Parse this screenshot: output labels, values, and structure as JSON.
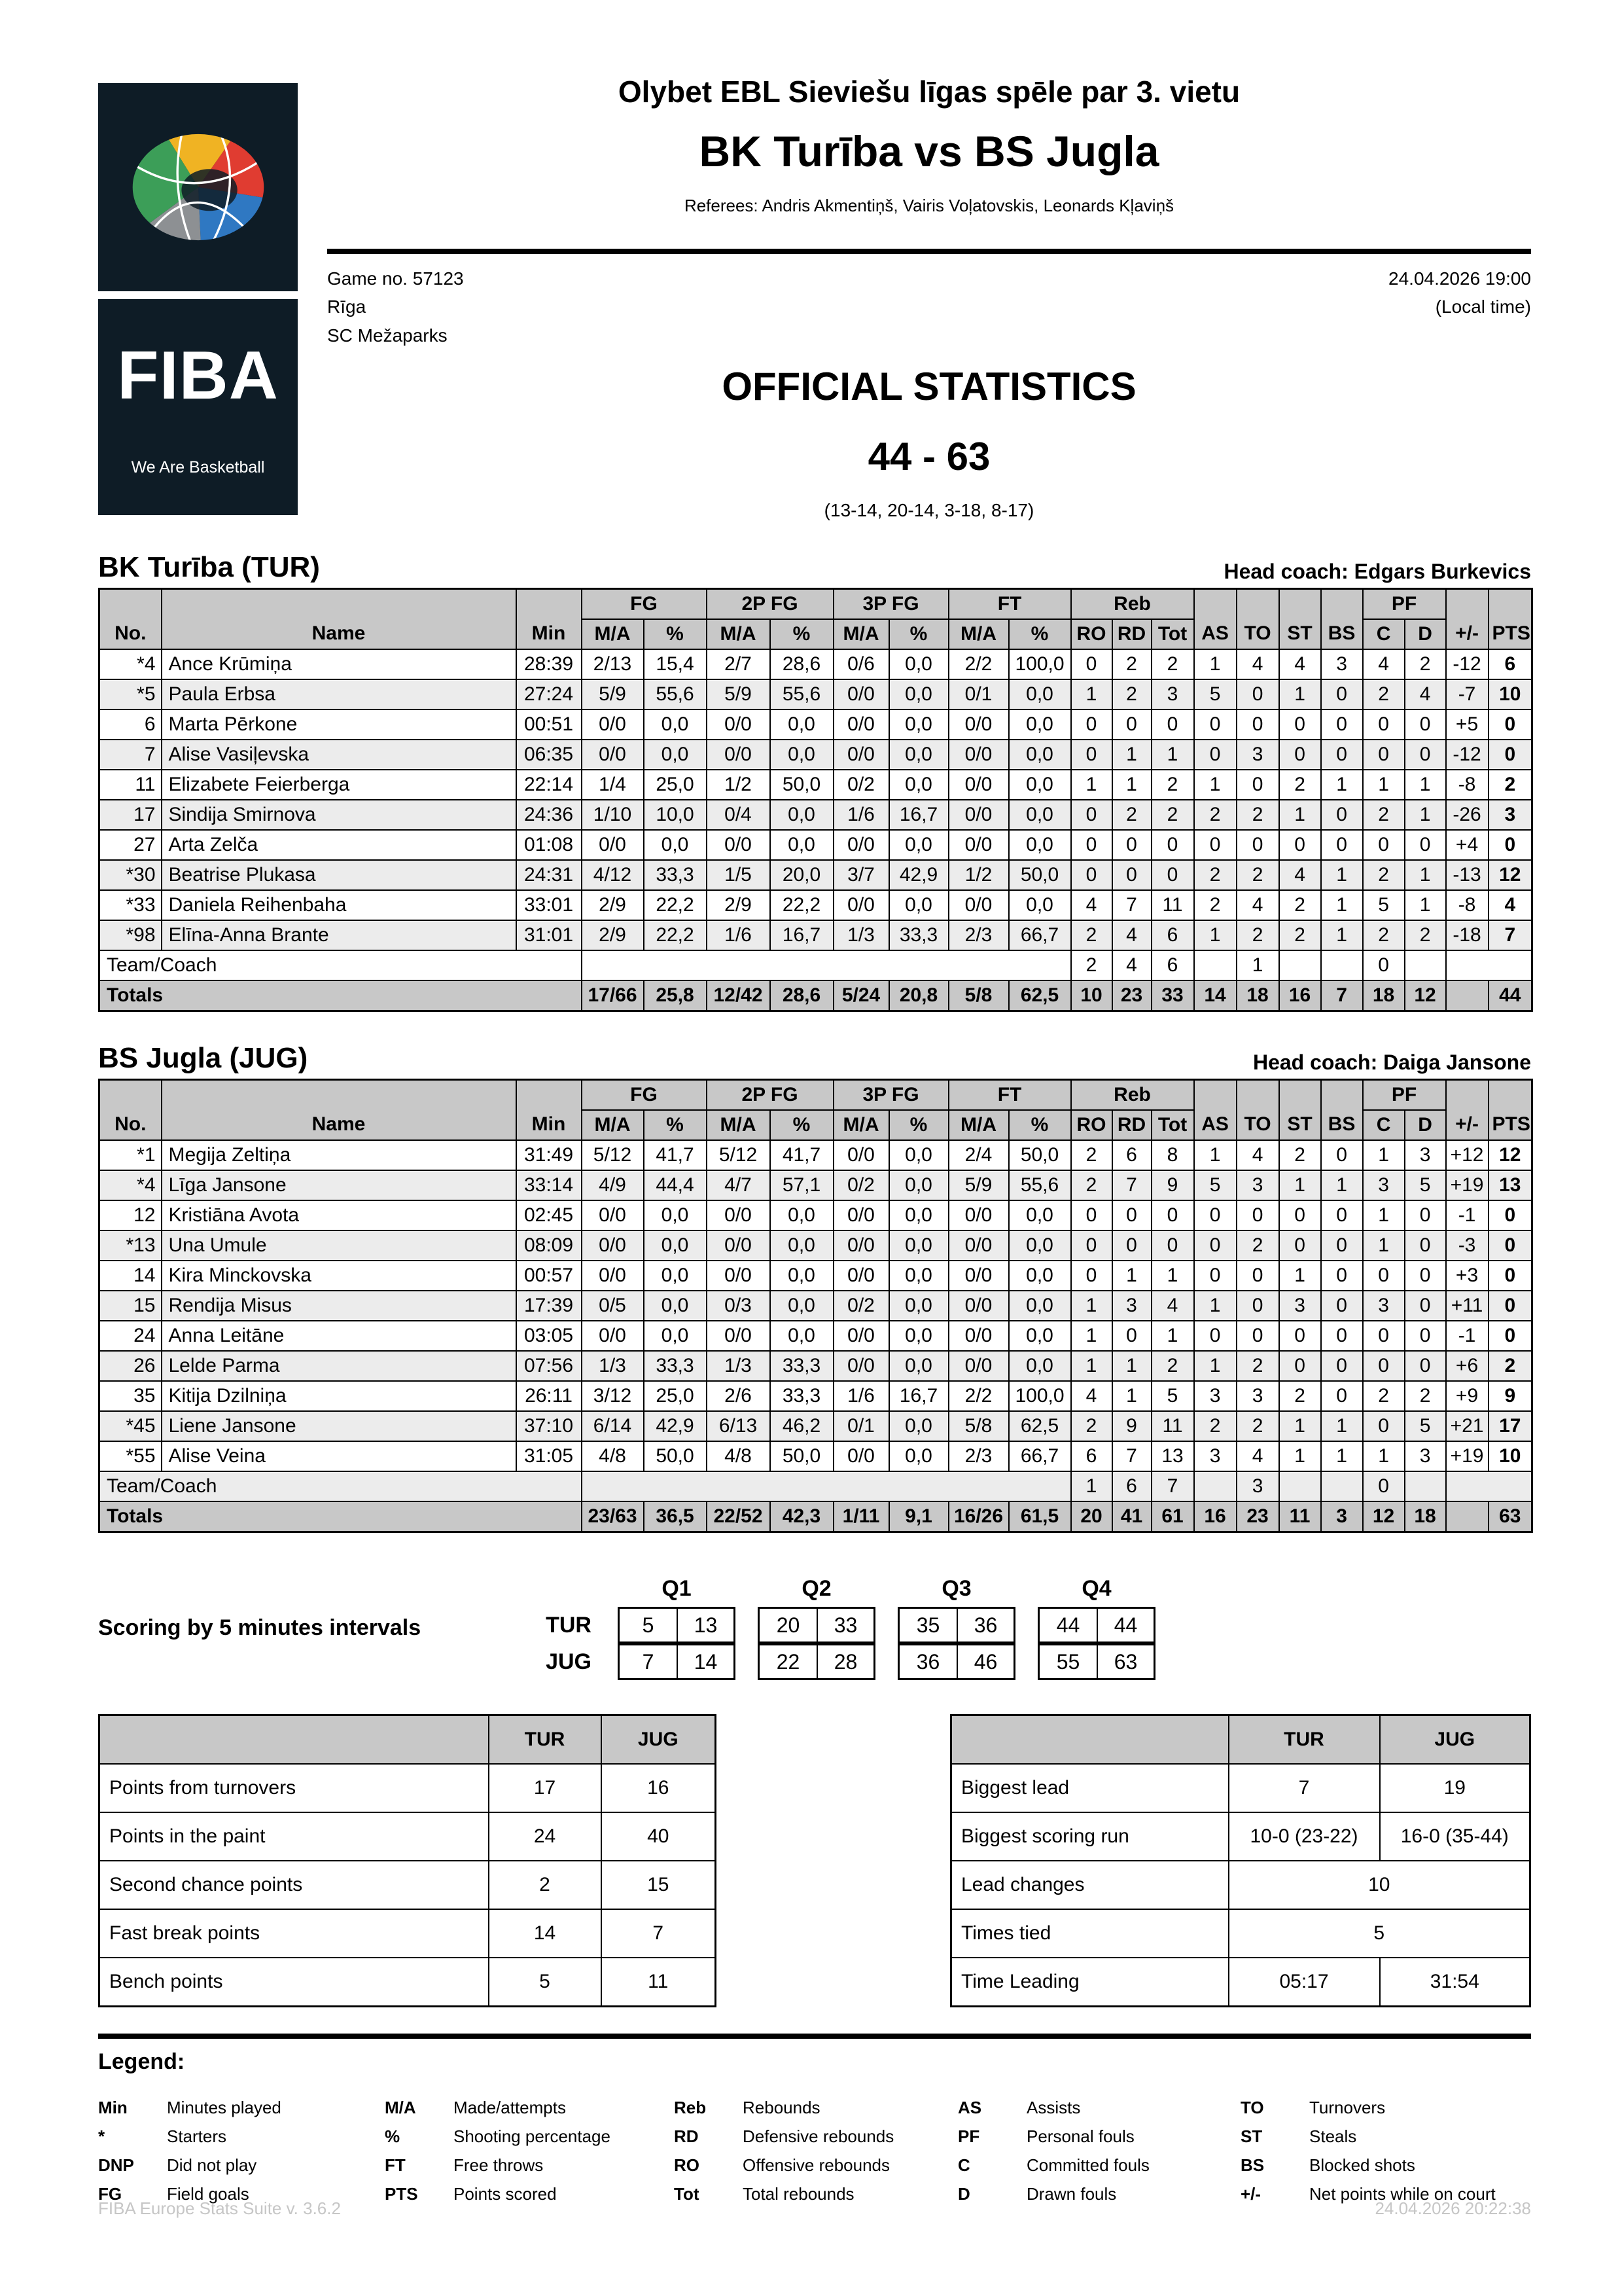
{
  "header": {
    "competition": "Olybet EBL Sieviešu līgas spēle par 3. vietu",
    "matchup": "BK Turība vs BS Jugla",
    "referees": "Referees: Andris Akmentiņš, Vairis Voļatovskis, Leonards Kļaviņš",
    "game_no": "Game no. 57123",
    "city": "Rīga",
    "venue": "SC Mežaparks",
    "datetime": "24.04.2026 19:00",
    "local_time": "(Local time)",
    "title": "OFFICIAL STATISTICS",
    "score": "44 - 63",
    "quarters": "(13-14, 20-14, 3-18, 8-17)"
  },
  "logo": {
    "fiba": "FIBA",
    "tagline": "We Are Basketball"
  },
  "columns": {
    "no": "No.",
    "name": "Name",
    "min": "Min",
    "ma": "M/A",
    "pct": "%",
    "fg": "FG",
    "fg2": "2P FG",
    "fg3": "3P FG",
    "ft": "FT",
    "reb": "Reb",
    "ro": "RO",
    "rd": "RD",
    "tot": "Tot",
    "as": "AS",
    "to": "TO",
    "st": "ST",
    "bs": "BS",
    "pf": "PF",
    "c": "C",
    "d": "D",
    "pm": "+/-",
    "pts": "PTS",
    "team_coach": "Team/Coach",
    "totals": "Totals"
  },
  "teams": [
    {
      "title": "BK Turība (TUR)",
      "coach": "Head coach: Edgars Burkevics",
      "players": [
        [
          "*4",
          "Ance Krūmiņa",
          "28:39",
          "2/13",
          "15,4",
          "2/7",
          "28,6",
          "0/6",
          "0,0",
          "2/2",
          "100,0",
          "0",
          "2",
          "2",
          "1",
          "4",
          "4",
          "3",
          "4",
          "2",
          "-12",
          "6"
        ],
        [
          "*5",
          "Paula Erbsa",
          "27:24",
          "5/9",
          "55,6",
          "5/9",
          "55,6",
          "0/0",
          "0,0",
          "0/1",
          "0,0",
          "1",
          "2",
          "3",
          "5",
          "0",
          "1",
          "0",
          "2",
          "4",
          "-7",
          "10"
        ],
        [
          "6",
          "Marta Pērkone",
          "00:51",
          "0/0",
          "0,0",
          "0/0",
          "0,0",
          "0/0",
          "0,0",
          "0/0",
          "0,0",
          "0",
          "0",
          "0",
          "0",
          "0",
          "0",
          "0",
          "0",
          "0",
          "+5",
          "0"
        ],
        [
          "7",
          "Alise Vasiļevska",
          "06:35",
          "0/0",
          "0,0",
          "0/0",
          "0,0",
          "0/0",
          "0,0",
          "0/0",
          "0,0",
          "0",
          "1",
          "1",
          "0",
          "3",
          "0",
          "0",
          "0",
          "0",
          "-12",
          "0"
        ],
        [
          "11",
          "Elizabete Feierberga",
          "22:14",
          "1/4",
          "25,0",
          "1/2",
          "50,0",
          "0/2",
          "0,0",
          "0/0",
          "0,0",
          "1",
          "1",
          "2",
          "1",
          "0",
          "2",
          "1",
          "1",
          "1",
          "-8",
          "2"
        ],
        [
          "17",
          "Sindija Smirnova",
          "24:36",
          "1/10",
          "10,0",
          "0/4",
          "0,0",
          "1/6",
          "16,7",
          "0/0",
          "0,0",
          "0",
          "2",
          "2",
          "2",
          "2",
          "1",
          "0",
          "2",
          "1",
          "-26",
          "3"
        ],
        [
          "27",
          "Arta Zelča",
          "01:08",
          "0/0",
          "0,0",
          "0/0",
          "0,0",
          "0/0",
          "0,0",
          "0/0",
          "0,0",
          "0",
          "0",
          "0",
          "0",
          "0",
          "0",
          "0",
          "0",
          "0",
          "+4",
          "0"
        ],
        [
          "*30",
          "Beatrise Plukasa",
          "24:31",
          "4/12",
          "33,3",
          "1/5",
          "20,0",
          "3/7",
          "42,9",
          "1/2",
          "50,0",
          "0",
          "0",
          "0",
          "2",
          "2",
          "4",
          "1",
          "2",
          "1",
          "-13",
          "12"
        ],
        [
          "*33",
          "Daniela Reihenbaha",
          "33:01",
          "2/9",
          "22,2",
          "2/9",
          "22,2",
          "0/0",
          "0,0",
          "0/0",
          "0,0",
          "4",
          "7",
          "11",
          "2",
          "4",
          "2",
          "1",
          "5",
          "1",
          "-8",
          "4"
        ],
        [
          "*98",
          "Elīna-Anna Brante",
          "31:01",
          "2/9",
          "22,2",
          "1/6",
          "16,7",
          "1/3",
          "33,3",
          "2/3",
          "66,7",
          "2",
          "4",
          "6",
          "1",
          "2",
          "2",
          "1",
          "2",
          "2",
          "-18",
          "7"
        ]
      ],
      "team_coach": {
        "ro": "2",
        "rd": "4",
        "tot": "6",
        "to": "1",
        "c": "0"
      },
      "totals": [
        "17/66",
        "25,8",
        "12/42",
        "28,6",
        "5/24",
        "20,8",
        "5/8",
        "62,5",
        "10",
        "23",
        "33",
        "14",
        "18",
        "16",
        "7",
        "18",
        "12",
        "",
        "44"
      ]
    },
    {
      "title": "BS Jugla (JUG)",
      "coach": "Head coach: Daiga Jansone",
      "players": [
        [
          "*1",
          "Megija Zeltiņa",
          "31:49",
          "5/12",
          "41,7",
          "5/12",
          "41,7",
          "0/0",
          "0,0",
          "2/4",
          "50,0",
          "2",
          "6",
          "8",
          "1",
          "4",
          "2",
          "0",
          "1",
          "3",
          "+12",
          "12"
        ],
        [
          "*4",
          "Līga Jansone",
          "33:14",
          "4/9",
          "44,4",
          "4/7",
          "57,1",
          "0/2",
          "0,0",
          "5/9",
          "55,6",
          "2",
          "7",
          "9",
          "5",
          "3",
          "1",
          "1",
          "3",
          "5",
          "+19",
          "13"
        ],
        [
          "12",
          "Kristiāna Avota",
          "02:45",
          "0/0",
          "0,0",
          "0/0",
          "0,0",
          "0/0",
          "0,0",
          "0/0",
          "0,0",
          "0",
          "0",
          "0",
          "0",
          "0",
          "0",
          "0",
          "1",
          "0",
          "-1",
          "0"
        ],
        [
          "*13",
          "Una Umule",
          "08:09",
          "0/0",
          "0,0",
          "0/0",
          "0,0",
          "0/0",
          "0,0",
          "0/0",
          "0,0",
          "0",
          "0",
          "0",
          "0",
          "2",
          "0",
          "0",
          "1",
          "0",
          "-3",
          "0"
        ],
        [
          "14",
          "Kira Minckovska",
          "00:57",
          "0/0",
          "0,0",
          "0/0",
          "0,0",
          "0/0",
          "0,0",
          "0/0",
          "0,0",
          "0",
          "1",
          "1",
          "0",
          "0",
          "1",
          "0",
          "0",
          "0",
          "+3",
          "0"
        ],
        [
          "15",
          "Rendija Misus",
          "17:39",
          "0/5",
          "0,0",
          "0/3",
          "0,0",
          "0/2",
          "0,0",
          "0/0",
          "0,0",
          "1",
          "3",
          "4",
          "1",
          "0",
          "3",
          "0",
          "3",
          "0",
          "+11",
          "0"
        ],
        [
          "24",
          "Anna Leitāne",
          "03:05",
          "0/0",
          "0,0",
          "0/0",
          "0,0",
          "0/0",
          "0,0",
          "0/0",
          "0,0",
          "1",
          "0",
          "1",
          "0",
          "0",
          "0",
          "0",
          "0",
          "0",
          "-1",
          "0"
        ],
        [
          "26",
          "Lelde Parma",
          "07:56",
          "1/3",
          "33,3",
          "1/3",
          "33,3",
          "0/0",
          "0,0",
          "0/0",
          "0,0",
          "1",
          "1",
          "2",
          "1",
          "2",
          "0",
          "0",
          "0",
          "0",
          "+6",
          "2"
        ],
        [
          "35",
          "Kitija Dzilniņa",
          "26:11",
          "3/12",
          "25,0",
          "2/6",
          "33,3",
          "1/6",
          "16,7",
          "2/2",
          "100,0",
          "4",
          "1",
          "5",
          "3",
          "3",
          "2",
          "0",
          "2",
          "2",
          "+9",
          "9"
        ],
        [
          "*45",
          "Liene Jansone",
          "37:10",
          "6/14",
          "42,9",
          "6/13",
          "46,2",
          "0/1",
          "0,0",
          "5/8",
          "62,5",
          "2",
          "9",
          "11",
          "2",
          "2",
          "1",
          "1",
          "0",
          "5",
          "+21",
          "17"
        ],
        [
          "*55",
          "Alise Veina",
          "31:05",
          "4/8",
          "50,0",
          "4/8",
          "50,0",
          "0/0",
          "0,0",
          "2/3",
          "66,7",
          "6",
          "7",
          "13",
          "3",
          "4",
          "1",
          "1",
          "1",
          "3",
          "+19",
          "10"
        ]
      ],
      "team_coach": {
        "ro": "1",
        "rd": "6",
        "tot": "7",
        "to": "3",
        "c": "0"
      },
      "totals": [
        "23/63",
        "36,5",
        "22/52",
        "42,3",
        "1/11",
        "9,1",
        "16/26",
        "61,5",
        "20",
        "41",
        "61",
        "16",
        "23",
        "11",
        "3",
        "12",
        "18",
        "",
        "63"
      ]
    }
  ],
  "intervals": {
    "label": "Scoring by 5 minutes intervals",
    "quarters": [
      "Q1",
      "Q2",
      "Q3",
      "Q4"
    ],
    "rows": [
      {
        "team": "TUR",
        "values": [
          [
            "5",
            "13"
          ],
          [
            "20",
            "33"
          ],
          [
            "35",
            "36"
          ],
          [
            "44",
            "44"
          ]
        ]
      },
      {
        "team": "JUG",
        "values": [
          [
            "7",
            "14"
          ],
          [
            "22",
            "28"
          ],
          [
            "36",
            "46"
          ],
          [
            "55",
            "63"
          ]
        ]
      }
    ]
  },
  "stats_left": {
    "header": {
      "tur": "TUR",
      "jug": "JUG"
    },
    "rows": [
      {
        "label": "Points from turnovers",
        "tur": "17",
        "jug": "16"
      },
      {
        "label": "Points in the paint",
        "tur": "24",
        "jug": "40"
      },
      {
        "label": "Second chance points",
        "tur": "2",
        "jug": "15"
      },
      {
        "label": "Fast break points",
        "tur": "14",
        "jug": "7"
      },
      {
        "label": "Bench points",
        "tur": "5",
        "jug": "11"
      }
    ]
  },
  "stats_right": {
    "header": {
      "tur": "TUR",
      "jug": "JUG"
    },
    "rows": [
      {
        "label": "Biggest lead",
        "tur": "7",
        "jug": "19"
      },
      {
        "label": "Biggest scoring run",
        "tur": "10-0 (23-22)",
        "jug": "16-0 (35-44)"
      },
      {
        "label": "Lead changes",
        "both": "10"
      },
      {
        "label": "Times tied",
        "both": "5"
      },
      {
        "label": "Time Leading",
        "tur": "05:17",
        "jug": "31:54"
      }
    ]
  },
  "legend": {
    "title": "Legend:",
    "columns": [
      [
        [
          "Min",
          "Minutes played"
        ],
        [
          "*",
          "Starters"
        ],
        [
          "DNP",
          "Did not play"
        ],
        [
          "FG",
          "Field goals"
        ]
      ],
      [
        [
          "M/A",
          "Made/attempts"
        ],
        [
          "%",
          "Shooting percentage"
        ],
        [
          "FT",
          "Free throws"
        ],
        [
          "PTS",
          "Points scored"
        ]
      ],
      [
        [
          "Reb",
          "Rebounds"
        ],
        [
          "RD",
          "Defensive rebounds"
        ],
        [
          "RO",
          "Offensive rebounds"
        ],
        [
          "Tot",
          "Total rebounds"
        ]
      ],
      [
        [
          "AS",
          "Assists"
        ],
        [
          "PF",
          "Personal fouls"
        ],
        [
          "C",
          "Committed fouls"
        ],
        [
          "D",
          "Drawn fouls"
        ]
      ],
      [
        [
          "TO",
          "Turnovers"
        ],
        [
          "ST",
          "Steals"
        ],
        [
          "BS",
          "Blocked shots"
        ],
        [
          "+/-",
          "Net points while on court"
        ]
      ]
    ]
  },
  "footer": {
    "left": "FIBA Europe Stats Suite v. 3.6.2",
    "right": "24.04.2026 20:22:38"
  }
}
